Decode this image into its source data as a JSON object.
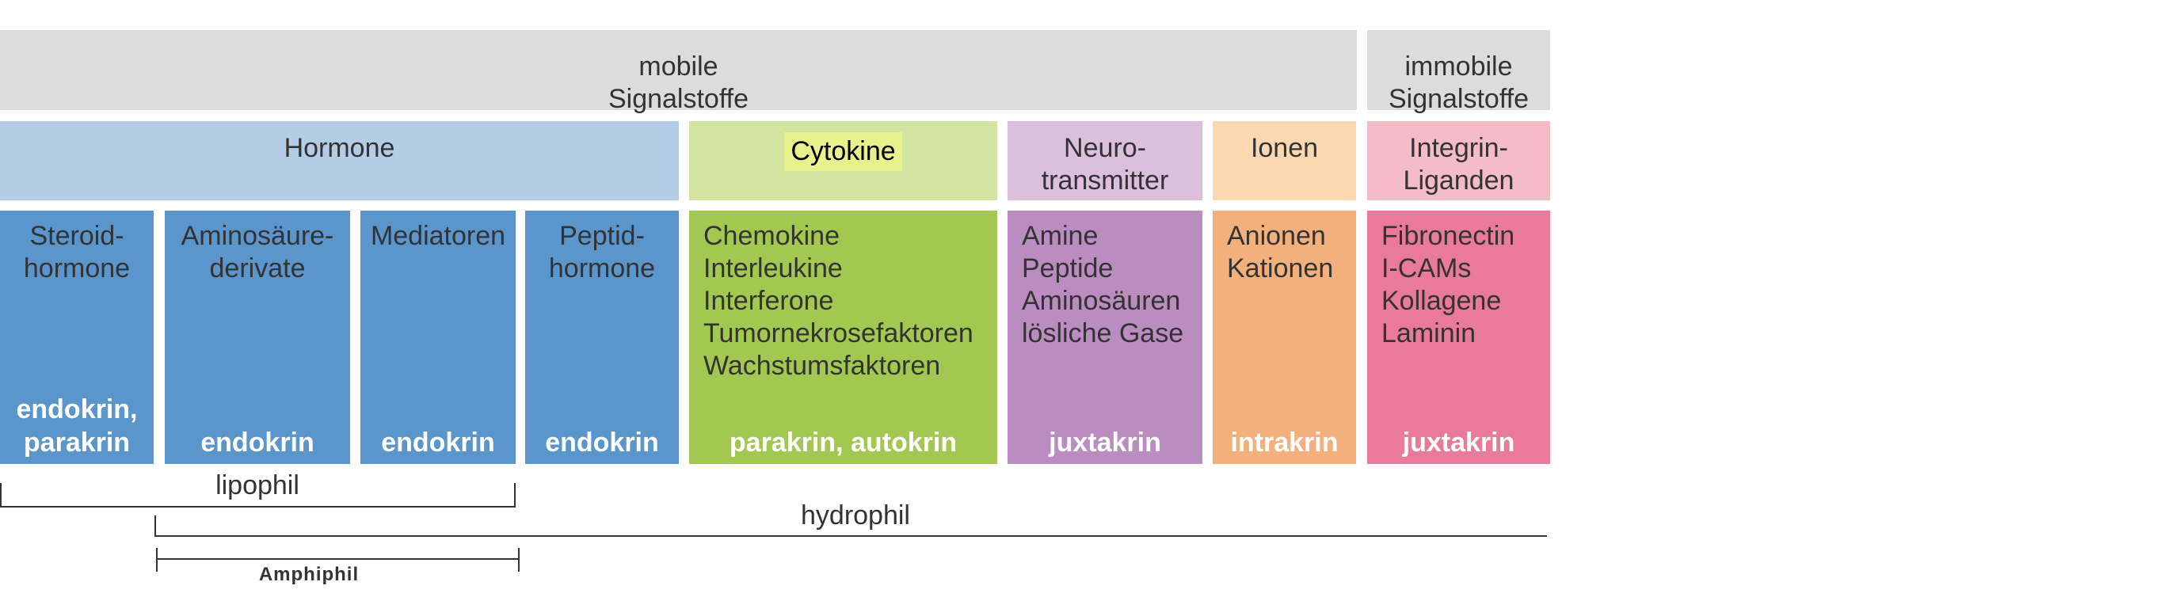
{
  "colors": {
    "top_header": "#dcdcdc",
    "hormone_header": "#b4cde6",
    "hormone_sub": "#5a96cc",
    "cytokine_header": "#d2e4a0",
    "cytokine_highlight": "#e8f28c",
    "cytokine_sub": "#a3c851",
    "neuro_header": "#dcbfdd",
    "neuro_sub": "#ba8cbf",
    "ionen_header": "#fbd8b0",
    "ionen_sub": "#f3b07c",
    "integrin_header": "#f4bcc6",
    "integrin_sub": "#e97a9a"
  },
  "top": {
    "mobile": "mobile\nSignalstoffe",
    "immobile": "immobile\nSignalstoffe"
  },
  "categories": {
    "hormone": "Hormone",
    "cytokine": "Cytokine",
    "neuro": "Neuro-\ntransmitter",
    "ionen": "Ionen",
    "integrin": "Integrin-\nLiganden"
  },
  "subgroups": {
    "steroid": {
      "title": "Steroid-\nhormone",
      "foot": "endokrin,\nparakrin"
    },
    "aminosaeure": {
      "title": "Aminosäure-\nderivate",
      "foot": "endokrin"
    },
    "mediatoren": {
      "title": "Mediatoren",
      "foot": "endokrin"
    },
    "peptid": {
      "title": "Peptid-\nhormone",
      "foot": "endokrin"
    },
    "cytokine": {
      "items": [
        "Chemokine",
        "Interleukine",
        "Interferone",
        "Tumornekrosefaktoren",
        "Wachstumsfaktoren"
      ],
      "foot": "parakrin, autokrin"
    },
    "neuro": {
      "items": [
        "Amine",
        "Peptide",
        "Aminosäuren",
        "lösliche Gase"
      ],
      "foot": "juxtakrin"
    },
    "ionen": {
      "items": [
        "Anionen",
        "Kationen"
      ],
      "foot": "intrakrin"
    },
    "integrin": {
      "items": [
        "Fibronectin",
        "I-CAMs",
        "Kollagene",
        "Laminin"
      ],
      "foot": "juxtakrin"
    }
  },
  "brackets": {
    "lipophil": "lipophil",
    "hydrophil": "hydrophil",
    "amphiphil": "Amphiphil"
  }
}
